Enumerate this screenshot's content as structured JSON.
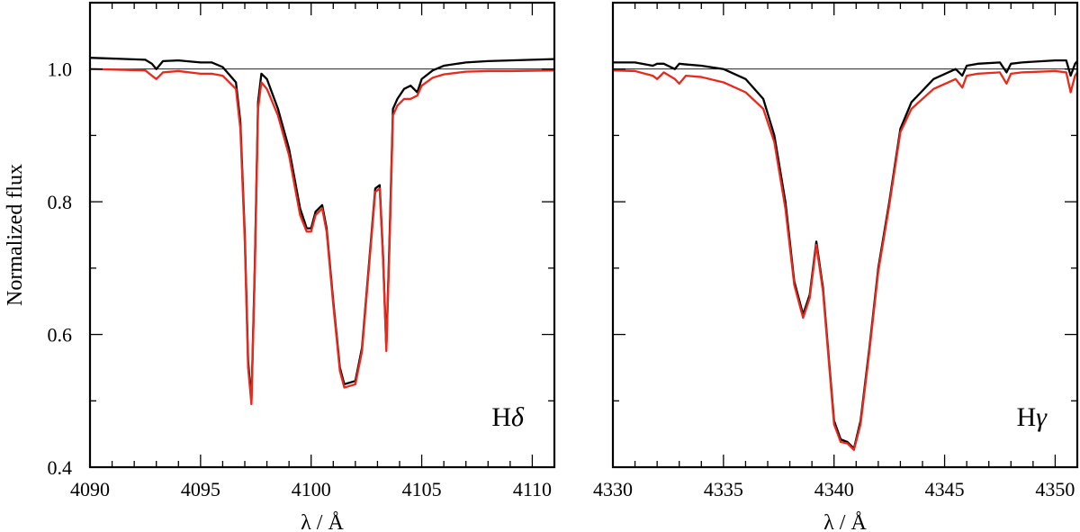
{
  "chart_data": [
    {
      "type": "line",
      "panel_label": "Hδ",
      "xlabel": "λ / Å",
      "ylabel": "Normalized flux",
      "xlim": [
        4090,
        4111
      ],
      "ylim": [
        0.4,
        1.1
      ],
      "xticks": [
        4090,
        4095,
        4100,
        4105,
        4110
      ],
      "yticks": [
        0.4,
        0.6,
        0.8,
        1.0
      ],
      "ytick_labels": [
        "0.4",
        "0.6",
        "0.8",
        "1.0"
      ],
      "reference_line": 1.0,
      "series": [
        {
          "color": "#000000",
          "x": [
            4090.0,
            4092.5,
            4092.8,
            4093.0,
            4093.3,
            4094.0,
            4095.0,
            4095.5,
            4096.0,
            4096.6,
            4096.8,
            4097.0,
            4097.15,
            4097.3,
            4097.45,
            4097.6,
            4097.75,
            4098.0,
            4098.5,
            4099.0,
            4099.5,
            4099.8,
            4100.0,
            4100.2,
            4100.5,
            4100.7,
            4101.0,
            4101.3,
            4101.5,
            4102.0,
            4102.3,
            4102.6,
            4102.9,
            4103.1,
            4103.25,
            4103.4,
            4103.55,
            4103.7,
            4103.9,
            4104.2,
            4104.5,
            4104.8,
            4105.0,
            4105.5,
            4106.0,
            4107.0,
            4108.0,
            4109.0,
            4111.0
          ],
          "y": [
            1.017,
            1.014,
            1.008,
            1.0,
            1.012,
            1.013,
            1.01,
            1.01,
            1.003,
            0.98,
            0.92,
            0.75,
            0.56,
            0.5,
            0.7,
            0.95,
            0.993,
            0.985,
            0.94,
            0.88,
            0.79,
            0.76,
            0.76,
            0.785,
            0.795,
            0.76,
            0.65,
            0.55,
            0.525,
            0.53,
            0.58,
            0.7,
            0.82,
            0.825,
            0.72,
            0.58,
            0.75,
            0.94,
            0.955,
            0.97,
            0.975,
            0.965,
            0.985,
            0.998,
            1.005,
            1.01,
            1.012,
            1.013,
            1.015
          ]
        },
        {
          "color": "#e8291c",
          "x": [
            4090.0,
            4092.5,
            4092.8,
            4093.0,
            4093.3,
            4094.0,
            4095.0,
            4095.5,
            4096.0,
            4096.6,
            4096.8,
            4097.0,
            4097.15,
            4097.3,
            4097.45,
            4097.6,
            4097.75,
            4098.0,
            4098.5,
            4099.0,
            4099.5,
            4099.8,
            4100.0,
            4100.2,
            4100.5,
            4100.7,
            4101.0,
            4101.3,
            4101.5,
            4102.0,
            4102.3,
            4102.6,
            4102.9,
            4103.1,
            4103.25,
            4103.4,
            4103.55,
            4103.7,
            4103.9,
            4104.2,
            4104.5,
            4104.8,
            4105.0,
            4105.5,
            4106.0,
            4107.0,
            4108.0,
            4109.0,
            4111.0
          ],
          "y": [
            1.0,
            0.998,
            0.99,
            0.985,
            0.995,
            0.997,
            0.993,
            0.993,
            0.99,
            0.97,
            0.91,
            0.74,
            0.55,
            0.495,
            0.69,
            0.94,
            0.98,
            0.97,
            0.93,
            0.87,
            0.78,
            0.755,
            0.755,
            0.78,
            0.79,
            0.755,
            0.645,
            0.545,
            0.52,
            0.525,
            0.575,
            0.695,
            0.815,
            0.82,
            0.715,
            0.575,
            0.74,
            0.93,
            0.945,
            0.955,
            0.955,
            0.96,
            0.975,
            0.987,
            0.992,
            0.996,
            0.997,
            0.997,
            0.998
          ]
        }
      ]
    },
    {
      "type": "line",
      "panel_label": "Hγ",
      "xlabel": "λ / Å",
      "xlim": [
        4330,
        4351
      ],
      "ylim": [
        0.4,
        1.1
      ],
      "xticks": [
        4330,
        4335,
        4340,
        4345,
        4350
      ],
      "yticks": [
        0.4,
        0.6,
        0.8,
        1.0
      ],
      "reference_line": 1.0,
      "series": [
        {
          "color": "#000000",
          "x": [
            4330.0,
            4331.0,
            4331.8,
            4332.0,
            4332.3,
            4332.8,
            4333.0,
            4333.3,
            4334.0,
            4335.0,
            4336.0,
            4336.8,
            4337.3,
            4337.8,
            4338.2,
            4338.6,
            4338.9,
            4339.2,
            4339.5,
            4339.8,
            4340.0,
            4340.3,
            4340.6,
            4340.9,
            4341.2,
            4341.6,
            4342.0,
            4342.5,
            4343.0,
            4343.5,
            4344.5,
            4345.5,
            4345.8,
            4346.0,
            4346.5,
            4347.5,
            4347.8,
            4348.0,
            4348.5,
            4350.0,
            4350.5,
            4350.7,
            4350.9,
            4351.0
          ],
          "y": [
            1.01,
            1.01,
            1.005,
            1.008,
            1.008,
            1.0,
            1.008,
            1.007,
            1.005,
            1.0,
            0.985,
            0.955,
            0.9,
            0.8,
            0.68,
            0.63,
            0.66,
            0.74,
            0.67,
            0.55,
            0.47,
            0.442,
            0.438,
            0.428,
            0.47,
            0.58,
            0.7,
            0.8,
            0.91,
            0.95,
            0.985,
            1.0,
            0.99,
            1.005,
            1.008,
            1.01,
            0.995,
            1.008,
            1.01,
            1.013,
            1.013,
            0.99,
            1.008,
            1.012
          ]
        },
        {
          "color": "#e8291c",
          "x": [
            4330.0,
            4331.0,
            4331.8,
            4332.0,
            4332.3,
            4332.8,
            4333.0,
            4333.3,
            4334.0,
            4335.0,
            4336.0,
            4336.8,
            4337.3,
            4337.8,
            4338.2,
            4338.6,
            4338.9,
            4339.2,
            4339.5,
            4339.8,
            4340.0,
            4340.3,
            4340.6,
            4340.9,
            4341.2,
            4341.6,
            4342.0,
            4342.5,
            4343.0,
            4343.5,
            4344.5,
            4345.5,
            4345.8,
            4346.0,
            4346.5,
            4347.5,
            4347.8,
            4348.0,
            4348.5,
            4350.0,
            4350.5,
            4350.7,
            4350.9,
            4351.0
          ],
          "y": [
            0.998,
            0.997,
            0.99,
            0.985,
            0.995,
            0.985,
            0.978,
            0.99,
            0.988,
            0.98,
            0.965,
            0.94,
            0.89,
            0.79,
            0.675,
            0.625,
            0.655,
            0.735,
            0.665,
            0.545,
            0.465,
            0.438,
            0.436,
            0.426,
            0.465,
            0.575,
            0.695,
            0.795,
            0.905,
            0.94,
            0.97,
            0.985,
            0.972,
            0.99,
            0.993,
            0.995,
            0.978,
            0.993,
            0.995,
            0.997,
            0.995,
            0.965,
            0.99,
            0.995
          ]
        }
      ]
    }
  ]
}
